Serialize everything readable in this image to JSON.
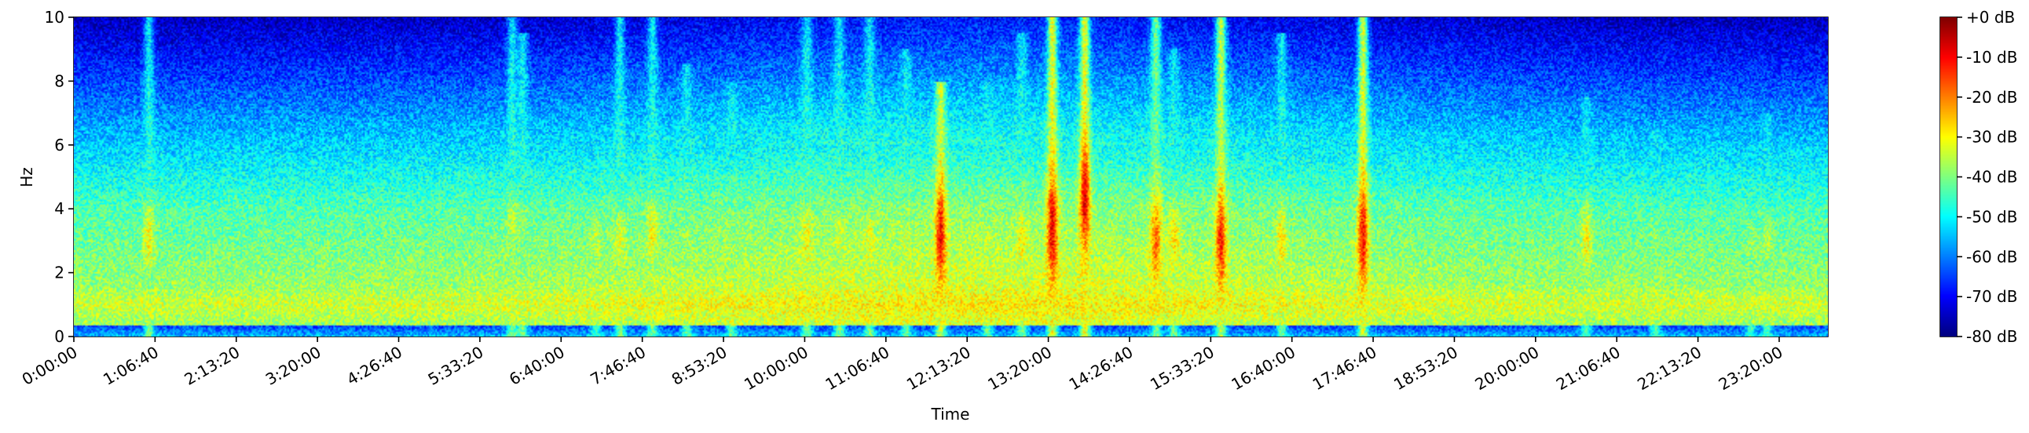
{
  "chart_data": {
    "type": "heatmap",
    "title": "",
    "xlabel": "Time",
    "ylabel": "Hz",
    "xlim_seconds": [
      0,
      86400
    ],
    "ylim": [
      0,
      10
    ],
    "x_ticks": [
      {
        "label": "0:00:00",
        "value": 0
      },
      {
        "label": "1:06:40",
        "value": 4000
      },
      {
        "label": "2:13:20",
        "value": 8000
      },
      {
        "label": "3:20:00",
        "value": 12000
      },
      {
        "label": "4:26:40",
        "value": 16000
      },
      {
        "label": "5:33:20",
        "value": 20000
      },
      {
        "label": "6:40:00",
        "value": 24000
      },
      {
        "label": "7:46:40",
        "value": 28000
      },
      {
        "label": "8:53:20",
        "value": 32000
      },
      {
        "label": "10:00:00",
        "value": 36000
      },
      {
        "label": "11:06:40",
        "value": 40000
      },
      {
        "label": "12:13:20",
        "value": 44000
      },
      {
        "label": "13:20:00",
        "value": 48000
      },
      {
        "label": "14:26:40",
        "value": 52000
      },
      {
        "label": "15:33:20",
        "value": 56000
      },
      {
        "label": "16:40:00",
        "value": 60000
      },
      {
        "label": "17:46:40",
        "value": 64000
      },
      {
        "label": "18:53:20",
        "value": 68000
      },
      {
        "label": "20:00:00",
        "value": 72000
      },
      {
        "label": "21:06:40",
        "value": 76000
      },
      {
        "label": "22:13:20",
        "value": 80000
      },
      {
        "label": "23:20:00",
        "value": 84000
      }
    ],
    "y_ticks": [
      {
        "label": "0",
        "value": 0
      },
      {
        "label": "2",
        "value": 2
      },
      {
        "label": "4",
        "value": 4
      },
      {
        "label": "6",
        "value": 6
      },
      {
        "label": "8",
        "value": 8
      },
      {
        "label": "10",
        "value": 10
      }
    ],
    "colorbar": {
      "colormap": "jet",
      "range_db": [
        -80,
        0
      ],
      "ticks": [
        {
          "label": "+0 dB",
          "value": 0
        },
        {
          "label": "-10 dB",
          "value": -10
        },
        {
          "label": "-20 dB",
          "value": -20
        },
        {
          "label": "-30 dB",
          "value": -30
        },
        {
          "label": "-40 dB",
          "value": -40
        },
        {
          "label": "-50 dB",
          "value": -50
        },
        {
          "label": "-60 dB",
          "value": -60
        },
        {
          "label": "-70 dB",
          "value": -70
        },
        {
          "label": "-80 dB",
          "value": -80
        }
      ]
    },
    "events": [
      {
        "t": 3700,
        "fmax": 10.0,
        "peak_db": -30,
        "f_center": 3.0
      },
      {
        "t": 21600,
        "fmax": 10.0,
        "peak_db": -35,
        "f_center": 3.5
      },
      {
        "t": 22100,
        "fmax": 9.5,
        "peak_db": -38,
        "f_center": 3.5
      },
      {
        "t": 25700,
        "fmax": 6.5,
        "peak_db": -35,
        "f_center": 3.0
      },
      {
        "t": 26900,
        "fmax": 10.0,
        "peak_db": -32,
        "f_center": 3.0
      },
      {
        "t": 28500,
        "fmax": 10.0,
        "peak_db": -30,
        "f_center": 3.2
      },
      {
        "t": 30200,
        "fmax": 8.5,
        "peak_db": -38,
        "f_center": 3.0
      },
      {
        "t": 32400,
        "fmax": 8.0,
        "peak_db": -38,
        "f_center": 3.0
      },
      {
        "t": 36100,
        "fmax": 10.0,
        "peak_db": -30,
        "f_center": 3.0
      },
      {
        "t": 37700,
        "fmax": 10.0,
        "peak_db": -34,
        "f_center": 3.0
      },
      {
        "t": 39200,
        "fmax": 10.0,
        "peak_db": -32,
        "f_center": 3.0
      },
      {
        "t": 41000,
        "fmax": 9.0,
        "peak_db": -34,
        "f_center": 3.0
      },
      {
        "t": 42700,
        "fmax": 8.0,
        "peak_db": -10,
        "f_center": 3.2
      },
      {
        "t": 45000,
        "fmax": 8.0,
        "peak_db": -35,
        "f_center": 3.0
      },
      {
        "t": 46700,
        "fmax": 9.5,
        "peak_db": -30,
        "f_center": 3.0
      },
      {
        "t": 48200,
        "fmax": 10.0,
        "peak_db": -8,
        "f_center": 3.4
      },
      {
        "t": 49800,
        "fmax": 10.0,
        "peak_db": -8,
        "f_center": 4.4
      },
      {
        "t": 53300,
        "fmax": 10.0,
        "peak_db": -18,
        "f_center": 3.0
      },
      {
        "t": 54200,
        "fmax": 9.0,
        "peak_db": -28,
        "f_center": 3.0
      },
      {
        "t": 56500,
        "fmax": 10.0,
        "peak_db": -12,
        "f_center": 3.0
      },
      {
        "t": 59500,
        "fmax": 9.5,
        "peak_db": -28,
        "f_center": 3.0
      },
      {
        "t": 63500,
        "fmax": 10.0,
        "peak_db": -10,
        "f_center": 3.2
      },
      {
        "t": 74500,
        "fmax": 7.5,
        "peak_db": -30,
        "f_center": 3.0
      },
      {
        "t": 77900,
        "fmax": 6.5,
        "peak_db": -38,
        "f_center": 3.0
      },
      {
        "t": 82600,
        "fmax": 6.0,
        "peak_db": -38,
        "f_center": 3.0
      },
      {
        "t": 83400,
        "fmax": 7.0,
        "peak_db": -36,
        "f_center": 3.0
      }
    ]
  }
}
